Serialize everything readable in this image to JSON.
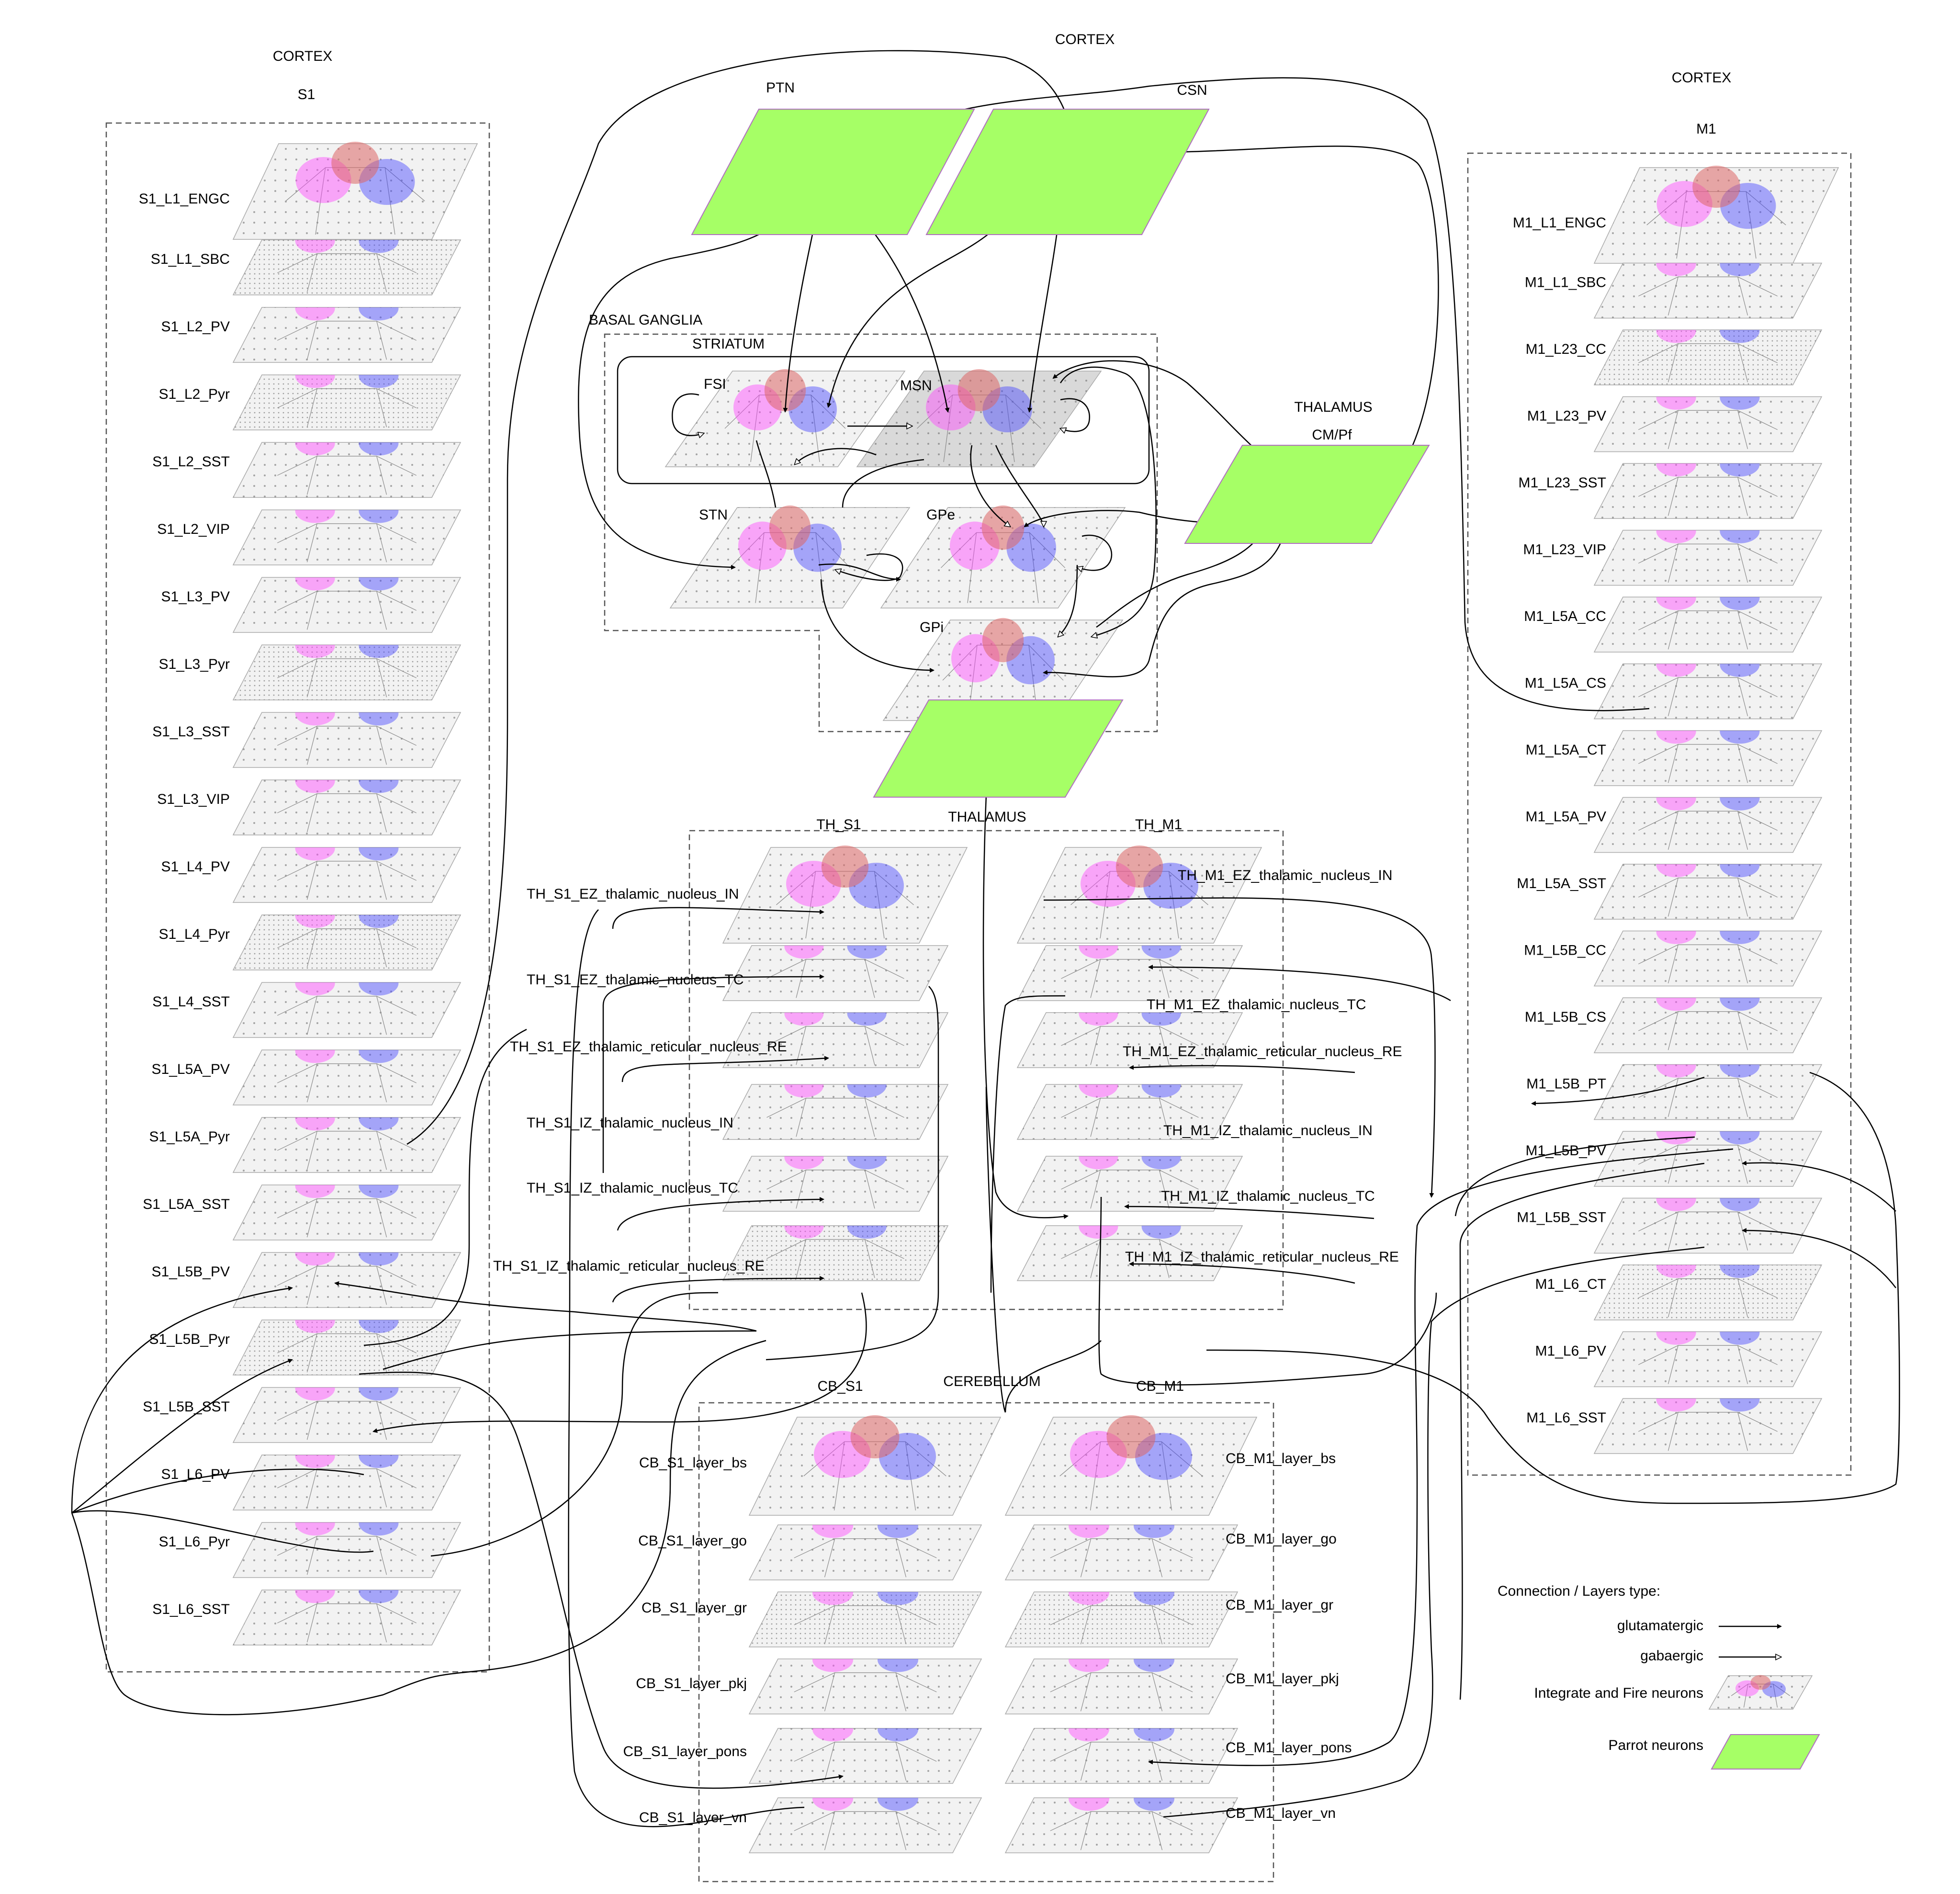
{
  "cortex_s1": {
    "region_label": "CORTEX",
    "area_label": "S1",
    "layers": [
      "S1_L1_ENGC",
      "S1_L1_SBC",
      "S1_L2_PV",
      "S1_L2_Pyr",
      "S1_L2_SST",
      "S1_L2_VIP",
      "S1_L3_PV",
      "S1_L3_Pyr",
      "S1_L3_SST",
      "S1_L3_VIP",
      "S1_L4_PV",
      "S1_L4_Pyr",
      "S1_L4_SST",
      "S1_L5A_PV",
      "S1_L5A_Pyr",
      "S1_L5A_SST",
      "S1_L5B_PV",
      "S1_L5B_Pyr",
      "S1_L5B_SST",
      "S1_L6_PV",
      "S1_L6_Pyr",
      "S1_L6_SST"
    ]
  },
  "cortex_top": {
    "region_label": "CORTEX",
    "ptn_label": "PTN",
    "csn_label": "CSN"
  },
  "basal_ganglia": {
    "label": "BASAL GANGLIA",
    "striatum_label": "STRIATUM",
    "fsi_label": "FSI",
    "msn_label": "MSN",
    "stn_label": "STN",
    "gpe_label": "GPe",
    "gpi_label": "GPi"
  },
  "thalamus_cmpf": {
    "region_label": "THALAMUS",
    "nucleus_label": "CM/Pf"
  },
  "thalamus_parrot_label": "THALAMUS",
  "thalamus": {
    "th_s1_label": "TH_S1",
    "th_m1_label": "TH_M1",
    "s1_layers": [
      "TH_S1_EZ_thalamic_nucleus_IN",
      "TH_S1_EZ_thalamic_nucleus_TC",
      "TH_S1_EZ_thalamic_reticular_nucleus_RE",
      "TH_S1_IZ_thalamic_nucleus_IN",
      "TH_S1_IZ_thalamic_nucleus_TC",
      "TH_S1_IZ_thalamic_reticular_nucleus_RE"
    ],
    "m1_layers": [
      "TH_M1_EZ_thalamic_nucleus_IN",
      "TH_M1_EZ_thalamic_nucleus_TC",
      "TH_M1_EZ_thalamic_reticular_nucleus_RE",
      "TH_M1_IZ_thalamic_nucleus_IN",
      "TH_M1_IZ_thalamic_nucleus_TC",
      "TH_M1_IZ_thalamic_reticular_nucleus_RE"
    ]
  },
  "cerebellum": {
    "label": "CEREBELLUM",
    "cb_s1_label": "CB_S1",
    "cb_m1_label": "CB_M1",
    "s1_layers": [
      "CB_S1_layer_bs",
      "CB_S1_layer_go",
      "CB_S1_layer_gr",
      "CB_S1_layer_pkj",
      "CB_S1_layer_pons",
      "CB_S1_layer_vn"
    ],
    "m1_layers": [
      "CB_M1_layer_bs",
      "CB_M1_layer_go",
      "CB_M1_layer_gr",
      "CB_M1_layer_pkj",
      "CB_M1_layer_pons",
      "CB_M1_layer_vn"
    ]
  },
  "cortex_m1": {
    "region_label": "CORTEX",
    "area_label": "M1",
    "layers": [
      "M1_L1_ENGC",
      "M1_L1_SBC",
      "M1_L23_CC",
      "M1_L23_PV",
      "M1_L23_SST",
      "M1_L23_VIP",
      "M1_L5A_CC",
      "M1_L5A_CS",
      "M1_L5A_CT",
      "M1_L5A_PV",
      "M1_L5A_SST",
      "M1_L5B_CC",
      "M1_L5B_CS",
      "M1_L5B_PT",
      "M1_L5B_PV",
      "M1_L5B_SST",
      "M1_L6_CT",
      "M1_L6_PV",
      "M1_L6_SST"
    ]
  },
  "legend": {
    "title": "Connection / Layers type:",
    "glutamatergic": "glutamatergic",
    "gabaergic": "gabaergic",
    "iaf": "Integrate and Fire neurons",
    "parrot": "Parrot neurons"
  },
  "colors": {
    "parrot_fill": "#a6ff66",
    "parrot_stroke": "#b06fc0",
    "plate_fill": "#f2f2f2",
    "plate_fill_dark": "#d9d9d9",
    "excitatory_blob": "#ff44ff",
    "inhibitory_blob": "#4444ff",
    "overlap_blob": "#dd6666",
    "line": "#000000",
    "dashed_box": "#555555"
  },
  "icons": {
    "glutamatergic_arrow": "filled-triangle-arrow",
    "gabaergic_arrow": "open-triangle-arrow"
  }
}
